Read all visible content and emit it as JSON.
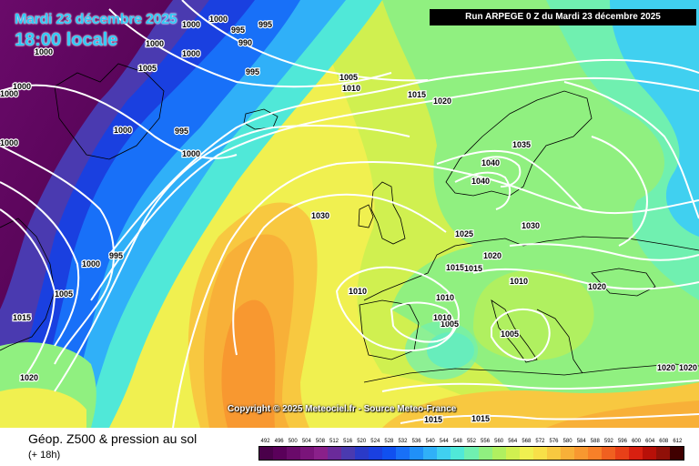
{
  "header": {
    "run": "Run ARPEGE 0 Z du Mardi 23 décembre 2025",
    "date": "Mardi 23 décembre 2025",
    "time": "18:00 locale"
  },
  "copyright": "Copyright © 2025 Meteociel.fr - Source Meteo-France",
  "footer": {
    "title": "Géop. Z500 & pression au sol",
    "subtitle": "(+ 18h)"
  },
  "legend": {
    "values": [
      "492",
      "496",
      "500",
      "504",
      "508",
      "512",
      "516",
      "520",
      "524",
      "528",
      "532",
      "536",
      "540",
      "544",
      "548",
      "552",
      "556",
      "560",
      "564",
      "568",
      "572",
      "576",
      "580",
      "584",
      "588",
      "592",
      "596",
      "600",
      "604",
      "608",
      "612"
    ],
    "colors": [
      "#4a004a",
      "#5a005a",
      "#6a0a6a",
      "#7a147a",
      "#8a208a",
      "#6a2a9a",
      "#4a3ab0",
      "#2a3ac8",
      "#1a40e0",
      "#1050f0",
      "#1870f8",
      "#2090f8",
      "#30b0f8",
      "#40d0f0",
      "#50e8d8",
      "#70f0b0",
      "#90f080",
      "#b0f060",
      "#d0f050",
      "#f0f050",
      "#f8e048",
      "#f8c840",
      "#f8b038",
      "#f89830",
      "#f88028",
      "#f06020",
      "#e84018",
      "#d82010",
      "#b81008",
      "#901008",
      "#400000"
    ]
  },
  "isobars": [
    "1000",
    "995",
    "990",
    "995",
    "1000",
    "1000",
    "995",
    "1000",
    "1005",
    "1000",
    "1000",
    "1000",
    "1000",
    "1000",
    "995",
    "1000",
    "1005",
    "1010",
    "1015",
    "1020",
    "1030",
    "995",
    "1005",
    "1015",
    "1020",
    "1000",
    "1015",
    "1030",
    "1025",
    "1020",
    "1015",
    "1010",
    "1010",
    "1010",
    "1005",
    "1010",
    "1005",
    "1020",
    "1035",
    "1040",
    "1040",
    "1030",
    "1020",
    "1020",
    "1015",
    "1015"
  ],
  "colors": {
    "title_text": "#31c8f5",
    "run_box_bg": "#000000",
    "isobar": "#ffffff",
    "coastline": "#000000"
  }
}
